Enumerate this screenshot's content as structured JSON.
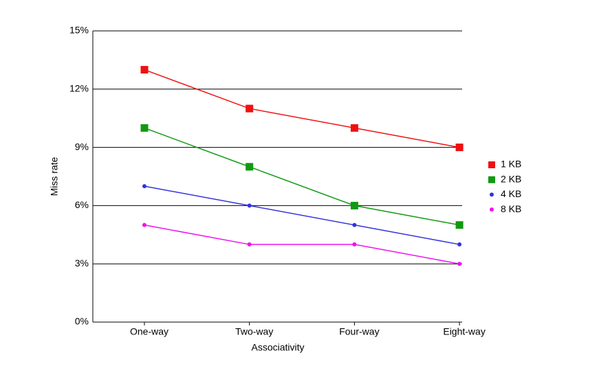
{
  "chart_data": {
    "type": "line",
    "x_label": "Associativity",
    "y_label": "Miss rate",
    "categories": [
      "One-way",
      "Two-way",
      "Four-way",
      "Eight-way"
    ],
    "series": [
      {
        "name": "1 KB",
        "color": "#ee1111",
        "marker": "square",
        "values": [
          13,
          11,
          10,
          9
        ]
      },
      {
        "name": "2 KB",
        "color": "#119911",
        "marker": "square",
        "values": [
          10,
          8,
          6,
          5
        ]
      },
      {
        "name": "4 KB",
        "color": "#3333dd",
        "marker": "circle",
        "values": [
          7,
          6,
          5,
          4
        ]
      },
      {
        "name": "8 KB",
        "color": "#ee11ee",
        "marker": "circle",
        "values": [
          5,
          4,
          4,
          3
        ]
      }
    ],
    "ylim": [
      0,
      15
    ],
    "yticks": [
      {
        "value": 0,
        "label": "0%"
      },
      {
        "value": 3,
        "label": "3%"
      },
      {
        "value": 6,
        "label": "6%"
      },
      {
        "value": 9,
        "label": "9%"
      },
      {
        "value": 12,
        "label": "12%"
      },
      {
        "value": 15,
        "label": "15%"
      }
    ],
    "grid": true,
    "legend": "right"
  }
}
